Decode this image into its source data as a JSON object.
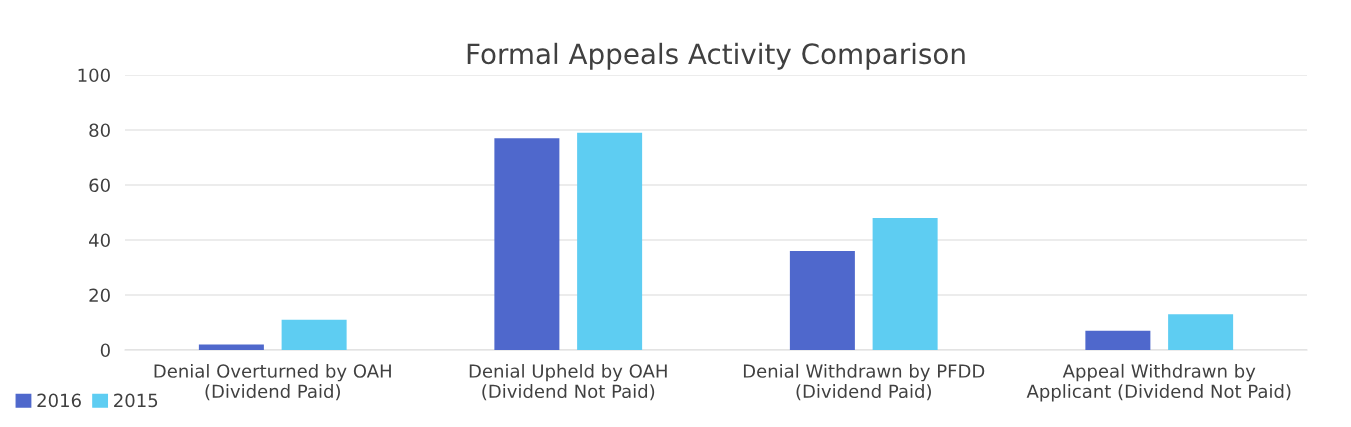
{
  "chart_data": {
    "type": "bar",
    "title": "Formal Appeals Activity Comparison",
    "categories": [
      "Denial Overturned by OAH\n(Dividend Paid)",
      "Denial Upheld by OAH\n(Dividend Not Paid)",
      "Denial Withdrawn by PFDD\n(Dividend Paid)",
      "Appeal Withdrawn by\nApplicant (Dividend Not Paid)"
    ],
    "series": [
      {
        "name": "2016",
        "color": "#4f68cc",
        "values": [
          2,
          77,
          36,
          7
        ]
      },
      {
        "name": "2015",
        "color": "#5ecdf2",
        "values": [
          11,
          79,
          48,
          13
        ]
      }
    ],
    "ylim": [
      0,
      100
    ],
    "yticks": [
      0,
      20,
      40,
      60,
      80,
      100
    ],
    "grid": "y",
    "legend": "bottom left"
  }
}
